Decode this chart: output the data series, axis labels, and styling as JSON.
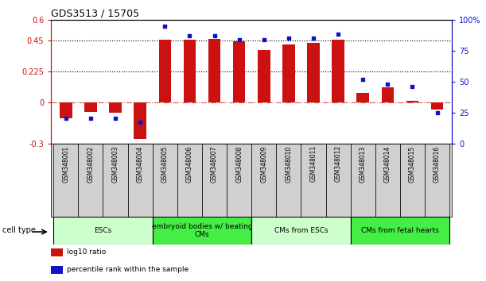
{
  "title": "GDS3513 / 15705",
  "samples": [
    "GSM348001",
    "GSM348002",
    "GSM348003",
    "GSM348004",
    "GSM348005",
    "GSM348006",
    "GSM348007",
    "GSM348008",
    "GSM348009",
    "GSM348010",
    "GSM348011",
    "GSM348012",
    "GSM348013",
    "GSM348014",
    "GSM348015",
    "GSM348016"
  ],
  "log10_ratio": [
    -0.115,
    -0.07,
    -0.075,
    -0.27,
    0.455,
    0.455,
    0.46,
    0.445,
    0.38,
    0.42,
    0.43,
    0.455,
    0.065,
    0.11,
    0.01,
    -0.055
  ],
  "percentile_rank": [
    20,
    20,
    20,
    17,
    95,
    87,
    87,
    84,
    84,
    85,
    85,
    88,
    52,
    48,
    46,
    25
  ],
  "bar_color": "#cc1111",
  "dot_color": "#1111cc",
  "ylim_left": [
    -0.3,
    0.6
  ],
  "ylim_right": [
    0,
    100
  ],
  "yticks_left": [
    -0.3,
    0,
    0.225,
    0.45,
    0.6
  ],
  "yticks_right": [
    0,
    25,
    50,
    75,
    100
  ],
  "ytick_labels_left": [
    "-0.3",
    "0",
    "0.225",
    "0.45",
    "0.6"
  ],
  "ytick_labels_right": [
    "0",
    "25",
    "50",
    "75",
    "100%"
  ],
  "hlines": [
    0.225,
    0.45
  ],
  "cell_type_groups": [
    {
      "label": "ESCs",
      "start": 0,
      "end": 3,
      "color": "#ccffcc"
    },
    {
      "label": "embryoid bodies w/ beating\nCMs",
      "start": 4,
      "end": 7,
      "color": "#44ee44"
    },
    {
      "label": "CMs from ESCs",
      "start": 8,
      "end": 11,
      "color": "#ccffcc"
    },
    {
      "label": "CMs from fetal hearts",
      "start": 12,
      "end": 15,
      "color": "#44ee44"
    }
  ],
  "legend_items": [
    {
      "label": "log10 ratio",
      "color": "#cc1111"
    },
    {
      "label": "percentile rank within the sample",
      "color": "#1111cc"
    }
  ],
  "cell_type_label": "cell type",
  "background_color": "#ffffff",
  "plot_bg_color": "#ffffff",
  "sample_bg_color": "#d0d0d0",
  "bar_width": 0.5
}
